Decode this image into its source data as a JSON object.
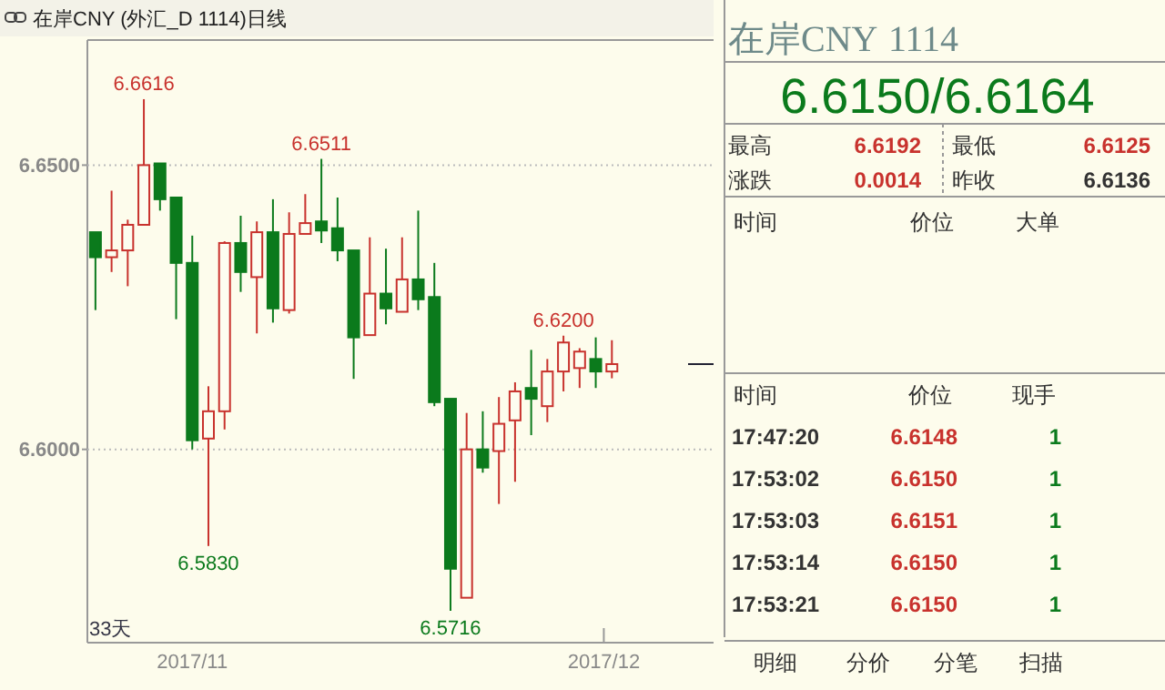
{
  "chart_data": [
    {
      "type": "candlestick",
      "title": "在岸CNY (外汇_D 1114)日线",
      "categories": [
        null,
        null,
        null,
        null,
        null,
        null,
        null,
        null,
        null,
        null,
        null,
        null,
        null,
        null,
        null,
        null,
        null,
        null,
        null,
        null,
        null,
        null,
        null,
        null,
        null,
        null,
        null,
        null,
        null,
        null,
        null,
        null,
        null
      ],
      "ohlc": [
        [
          6.6382,
          6.6382,
          6.6245,
          6.6338
        ],
        [
          6.6338,
          6.6455,
          6.6312,
          6.635
        ],
        [
          6.635,
          6.6404,
          6.6287,
          6.6395
        ],
        [
          6.6395,
          6.6616,
          6.6395,
          6.65
        ],
        [
          6.6503,
          6.6503,
          6.642,
          6.644
        ],
        [
          6.6443,
          6.6443,
          6.6229,
          6.6328
        ],
        [
          6.6328,
          6.6376,
          6.6,
          6.6016
        ],
        [
          6.6019,
          6.6111,
          6.583,
          6.6067
        ],
        [
          6.6067,
          6.6366,
          6.6035,
          6.6363
        ],
        [
          6.6363,
          6.6411,
          6.6277,
          6.6312
        ],
        [
          6.6303,
          6.6401,
          6.6204,
          6.6382
        ],
        [
          6.6382,
          6.644,
          6.6223,
          6.6248
        ],
        [
          6.6245,
          6.6417,
          6.6239,
          6.6379
        ],
        [
          6.6379,
          6.6449,
          6.6379,
          6.6398
        ],
        [
          6.6401,
          6.6511,
          6.6363,
          6.6385
        ],
        [
          6.6389,
          6.6443,
          6.6331,
          6.635
        ],
        [
          6.635,
          6.635,
          6.6124,
          6.6197
        ],
        [
          6.6201,
          6.6373,
          6.6201,
          6.6274
        ],
        [
          6.6274,
          6.6353,
          6.622,
          6.6248
        ],
        [
          6.6242,
          6.6373,
          6.6242,
          6.6299
        ],
        [
          6.6299,
          6.642,
          6.6245,
          6.6264
        ],
        [
          6.6268,
          6.6328,
          6.6076,
          6.6083
        ],
        [
          6.6089,
          6.6089,
          6.5716,
          6.579
        ],
        [
          6.5739,
          6.6064,
          6.5739,
          6.6
        ],
        [
          6.6,
          6.6067,
          6.5959,
          6.5968
        ],
        [
          6.5997,
          6.6092,
          6.5904,
          6.6045
        ],
        [
          6.6051,
          6.6118,
          6.5943,
          6.6102
        ],
        [
          6.6108,
          6.6175,
          6.6025,
          6.6089
        ],
        [
          6.6076,
          6.6159,
          6.6048,
          6.6137
        ],
        [
          6.6137,
          6.62,
          6.6102,
          6.6188
        ],
        [
          6.6143,
          6.6178,
          6.6108,
          6.6172
        ],
        [
          6.6159,
          6.6197,
          6.6108,
          6.6137
        ],
        [
          6.6137,
          6.6192,
          6.6125,
          6.615
        ]
      ],
      "ylim": [
        6.566,
        6.672
      ],
      "yticks": [
        {
          "value": 6.65,
          "label": "6.6500"
        },
        {
          "value": 6.6,
          "label": "6.6000"
        }
      ],
      "grid": "y",
      "annotations": [
        {
          "text": "6.6616",
          "y": 6.6616
        },
        {
          "text": "6.6511",
          "y": 6.6511
        },
        {
          "text": "6.6200",
          "y": 6.62
        },
        {
          "text": "6.5830",
          "y": 6.583
        },
        {
          "text": "6.5716",
          "y": 6.5716
        },
        "2017/11",
        "2017/12",
        "33天"
      ]
    },
    {
      "type": "other",
      "annotations": [
        "在岸CNY",
        "1114",
        "6.6150/6.6164",
        "最高",
        "6.6192",
        "最低",
        "6.6125",
        "涨跌",
        "0.0014",
        "昨收",
        "6.6136",
        "时间",
        "价位",
        "大单",
        "时间",
        "价位",
        "现手",
        "17:47:20",
        "6.6148",
        "1",
        "17:53:02",
        "6.6150",
        "1",
        "17:53:03",
        "6.6151",
        "1",
        "17:53:14",
        "6.6150",
        "1",
        "17:53:21",
        "6.6150",
        "1",
        "明细",
        "分价",
        "分笔",
        "扫描"
      ]
    }
  ]
}
